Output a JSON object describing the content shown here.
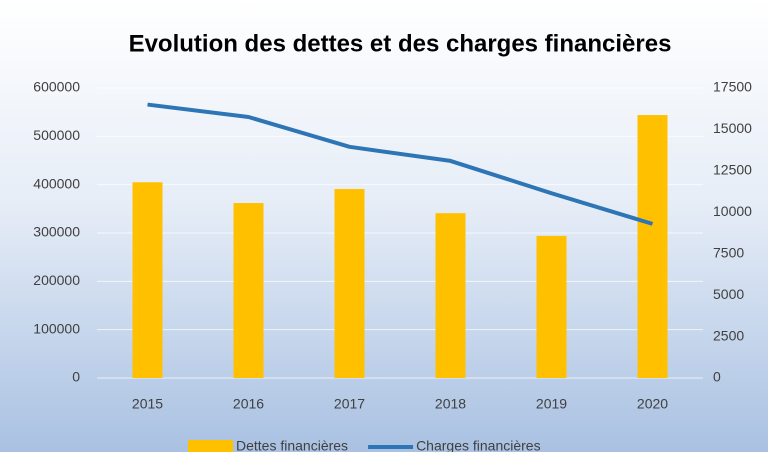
{
  "chart_data": {
    "type": "bar-line",
    "title": "Evolution des dettes et des charges financières",
    "categories": [
      "2015",
      "2016",
      "2017",
      "2018",
      "2019",
      "2020"
    ],
    "series": [
      {
        "name": "Dettes financières",
        "type": "bar",
        "color": "#ffc000",
        "values": [
          405000,
          362000,
          391000,
          341000,
          294000,
          544000
        ]
      },
      {
        "name": "Charges financières",
        "type": "line",
        "axis": "y2",
        "color": "#2e75b6",
        "values": [
          16500,
          15750,
          13950,
          13100,
          11150,
          9300
        ]
      }
    ],
    "ylim": [
      0,
      600000
    ],
    "yticks": [
      0,
      100000,
      200000,
      300000,
      400000,
      500000,
      600000
    ],
    "y2lim": [
      0,
      17500
    ],
    "y2ticks": [
      0,
      2500,
      5000,
      7500,
      10000,
      12500,
      15000,
      17500
    ],
    "grid": true,
    "legend": "bottom"
  }
}
